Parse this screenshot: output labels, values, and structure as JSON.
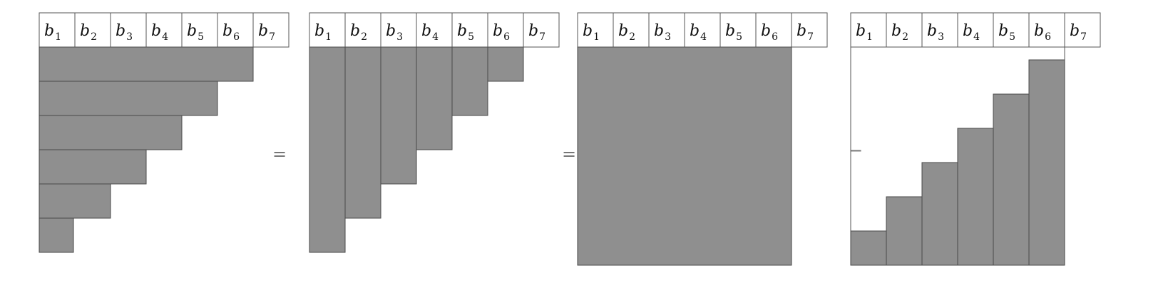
{
  "panels": [
    {
      "name": "rows-triangle",
      "headers": [
        {
          "base": "b",
          "sub": "1"
        },
        {
          "base": "b",
          "sub": "2"
        },
        {
          "base": "b",
          "sub": "3"
        },
        {
          "base": "b",
          "sub": "4"
        },
        {
          "base": "b",
          "sub": "5"
        },
        {
          "base": "b",
          "sub": "6"
        },
        {
          "base": "b",
          "sub": "7"
        }
      ]
    },
    {
      "name": "columns-triangle",
      "headers": [
        {
          "base": "b",
          "sub": "1"
        },
        {
          "base": "b",
          "sub": "2"
        },
        {
          "base": "b",
          "sub": "3"
        },
        {
          "base": "b",
          "sub": "4"
        },
        {
          "base": "b",
          "sub": "5"
        },
        {
          "base": "b",
          "sub": "6"
        },
        {
          "base": "b",
          "sub": "7"
        }
      ]
    },
    {
      "name": "full-square",
      "headers": [
        {
          "base": "b",
          "sub": "1"
        },
        {
          "base": "b",
          "sub": "2"
        },
        {
          "base": "b",
          "sub": "3"
        },
        {
          "base": "b",
          "sub": "4"
        },
        {
          "base": "b",
          "sub": "5"
        },
        {
          "base": "b",
          "sub": "6"
        },
        {
          "base": "b",
          "sub": "7"
        }
      ]
    },
    {
      "name": "staircase",
      "headers": [
        {
          "base": "b",
          "sub": "1"
        },
        {
          "base": "b",
          "sub": "2"
        },
        {
          "base": "b",
          "sub": "3"
        },
        {
          "base": "b",
          "sub": "4"
        },
        {
          "base": "b",
          "sub": "5"
        },
        {
          "base": "b",
          "sub": "6"
        },
        {
          "base": "b",
          "sub": "7"
        }
      ]
    }
  ],
  "operators": [
    "=",
    "=",
    "−"
  ],
  "colors": {
    "shade": "#8f8f8f",
    "border": "#555555",
    "background": "#ffffff"
  }
}
